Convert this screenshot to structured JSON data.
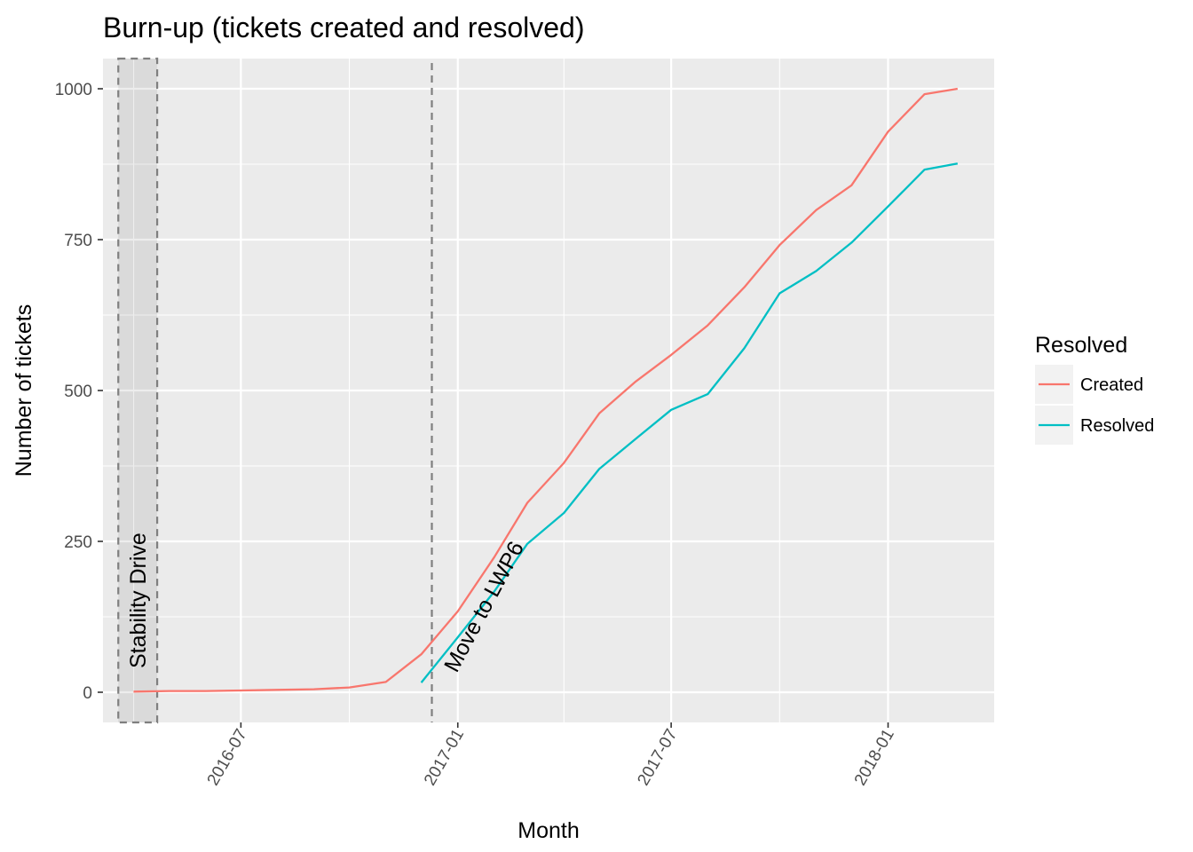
{
  "chart_data": {
    "type": "line",
    "title": "Burn-up (tickets created and resolved)",
    "xlabel": "Month",
    "ylabel": "Number of tickets",
    "x_ticks": [
      "2016-07",
      "2017-01",
      "2017-07",
      "2018-01"
    ],
    "y_ticks": [
      "0",
      "250",
      "500",
      "750",
      "1000"
    ],
    "xlim": [
      "2016-03-06",
      "2018-04-01"
    ],
    "ylim": [
      -50,
      1050
    ],
    "grid": true,
    "legend": {
      "title": "Resolved",
      "position": "right",
      "items": [
        {
          "label": "Created",
          "color": "#F8766D"
        },
        {
          "label": "Resolved",
          "color": "#00BFC4"
        }
      ]
    },
    "series": [
      {
        "name": "Created",
        "color": "#F8766D",
        "points": [
          {
            "x": "2016-04-01",
            "y": 1
          },
          {
            "x": "2016-05-01",
            "y": 2
          },
          {
            "x": "2016-06-01",
            "y": 2
          },
          {
            "x": "2016-07-01",
            "y": 3
          },
          {
            "x": "2016-08-01",
            "y": 4
          },
          {
            "x": "2016-09-01",
            "y": 5
          },
          {
            "x": "2016-10-01",
            "y": 8
          },
          {
            "x": "2016-11-01",
            "y": 17
          },
          {
            "x": "2016-12-01",
            "y": 63
          },
          {
            "x": "2017-01-01",
            "y": 134
          },
          {
            "x": "2017-02-01",
            "y": 224
          },
          {
            "x": "2017-03-01",
            "y": 314
          },
          {
            "x": "2017-04-01",
            "y": 380
          },
          {
            "x": "2017-05-01",
            "y": 462
          },
          {
            "x": "2017-06-01",
            "y": 515
          },
          {
            "x": "2017-07-01",
            "y": 559
          },
          {
            "x": "2017-08-01",
            "y": 608
          },
          {
            "x": "2017-09-01",
            "y": 671
          },
          {
            "x": "2017-10-01",
            "y": 741
          },
          {
            "x": "2017-11-01",
            "y": 799
          },
          {
            "x": "2017-12-01",
            "y": 840
          },
          {
            "x": "2018-01-01",
            "y": 929
          },
          {
            "x": "2018-02-01",
            "y": 991
          },
          {
            "x": "2018-03-01",
            "y": 1000
          }
        ]
      },
      {
        "name": "Resolved",
        "color": "#00BFC4",
        "points": [
          {
            "x": "2016-12-01",
            "y": 16
          },
          {
            "x": "2017-01-01",
            "y": 91
          },
          {
            "x": "2017-02-01",
            "y": 167
          },
          {
            "x": "2017-03-01",
            "y": 246
          },
          {
            "x": "2017-04-01",
            "y": 297
          },
          {
            "x": "2017-05-01",
            "y": 370
          },
          {
            "x": "2017-06-01",
            "y": 420
          },
          {
            "x": "2017-07-01",
            "y": 468
          },
          {
            "x": "2017-08-01",
            "y": 494
          },
          {
            "x": "2017-09-01",
            "y": 570
          },
          {
            "x": "2017-10-01",
            "y": 661
          },
          {
            "x": "2017-11-01",
            "y": 698
          },
          {
            "x": "2017-12-01",
            "y": 745
          },
          {
            "x": "2018-01-01",
            "y": 805
          },
          {
            "x": "2018-02-01",
            "y": 866
          },
          {
            "x": "2018-03-01",
            "y": 876
          }
        ]
      }
    ],
    "annotations": [
      {
        "type": "band",
        "label": "Stability Drive",
        "x_start": "2016-03-19",
        "x_end": "2016-04-21"
      },
      {
        "type": "vline",
        "label": "Move to LWP6",
        "x": "2016-12-10"
      }
    ]
  }
}
